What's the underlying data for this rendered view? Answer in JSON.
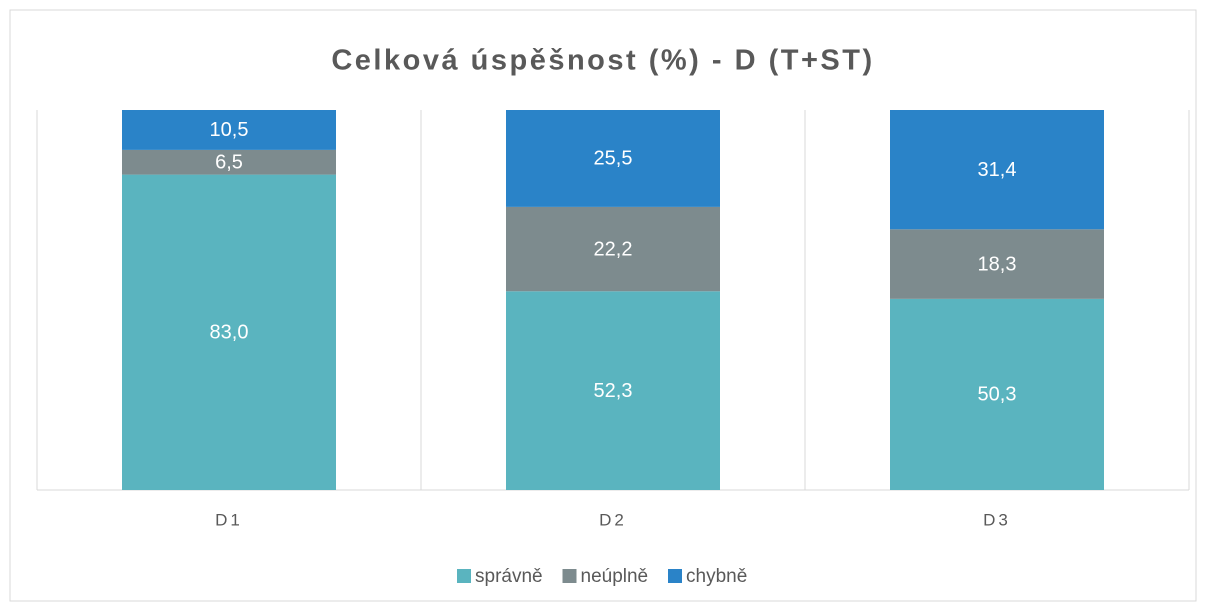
{
  "chart_data": {
    "type": "stacked_bar",
    "title": "Celková úspěšnost (%) - D (T+ST)",
    "categories": [
      "D1",
      "D2",
      "D3"
    ],
    "series": [
      {
        "name": "správně",
        "color": "#5ab4bf",
        "values": [
          83.0,
          52.3,
          50.3
        ],
        "value_labels": [
          "83,0",
          "52,3",
          "50,3"
        ]
      },
      {
        "name": "neúplně",
        "color": "#7d8b8e",
        "values": [
          6.5,
          22.2,
          18.3
        ],
        "value_labels": [
          "6,5",
          "22,2",
          "18,3"
        ]
      },
      {
        "name": "chybně",
        "color": "#2a83c8",
        "values": [
          10.5,
          25.5,
          31.4
        ],
        "value_labels": [
          "10,5",
          "25,5",
          "31,4"
        ]
      }
    ],
    "ylim": [
      0,
      100
    ],
    "legend": "bottom"
  }
}
